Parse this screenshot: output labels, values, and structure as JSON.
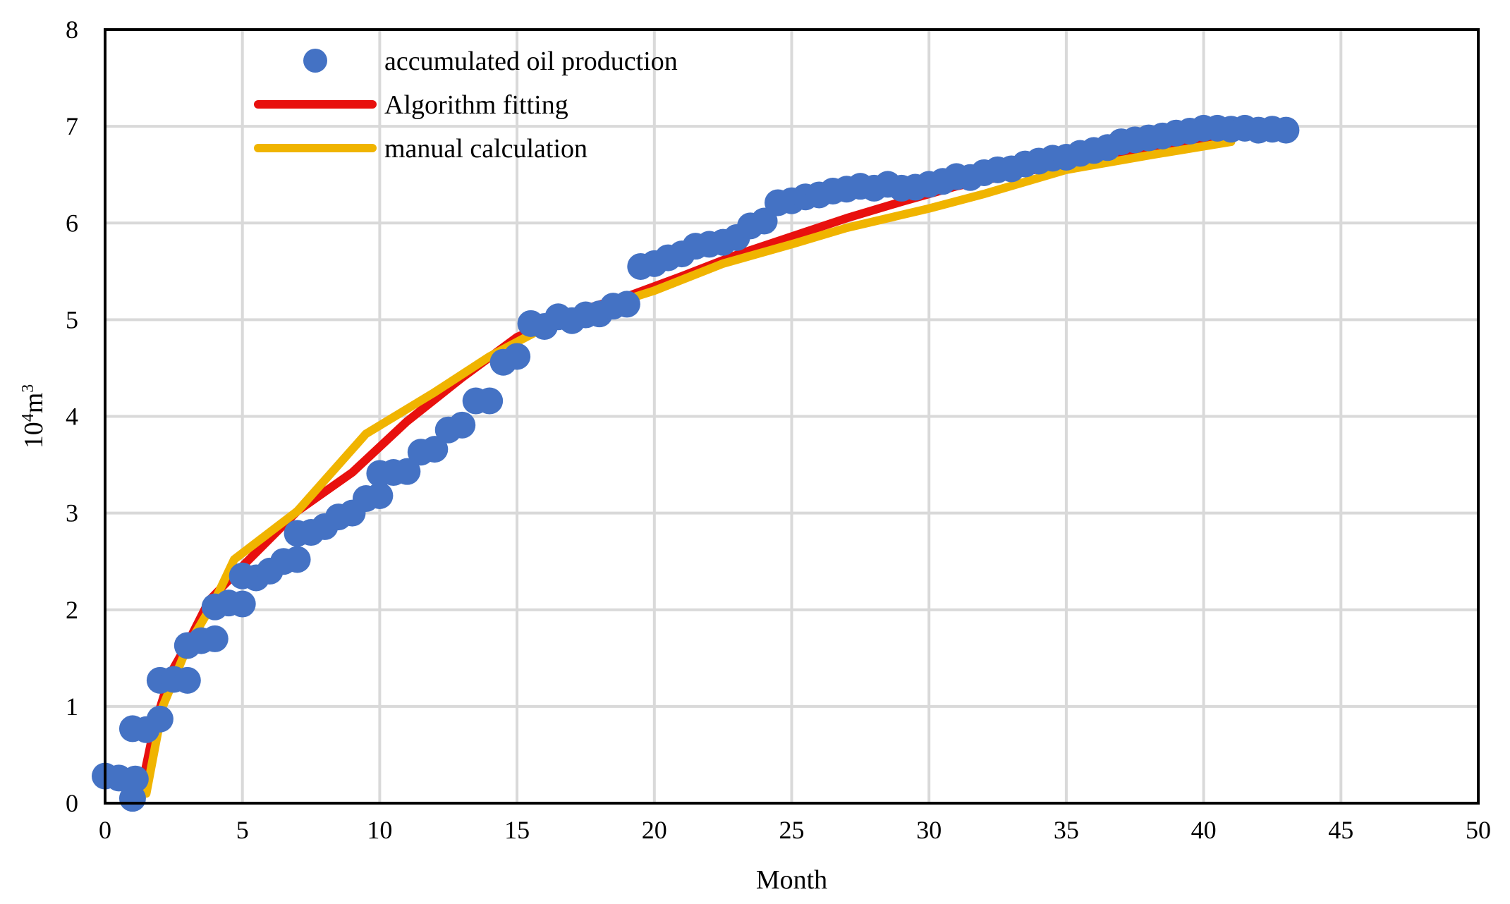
{
  "chart_data": {
    "type": "line",
    "title": "",
    "xlabel": "Month",
    "ylabel_base": "10",
    "ylabel_sup1": "4",
    "ylabel_mid": "m",
    "ylabel_sup2": "3",
    "xlim": [
      0,
      50
    ],
    "ylim": [
      0,
      8
    ],
    "xticks": [
      0,
      5,
      10,
      15,
      20,
      25,
      30,
      35,
      40,
      45,
      50
    ],
    "yticks": [
      0,
      1,
      2,
      3,
      4,
      5,
      6,
      7,
      8
    ],
    "grid": true,
    "legend_position": "top-left",
    "colors": {
      "scatter": "#4472C4",
      "fit": "#E8100E",
      "manual": "#F0B400",
      "grid": "#D9D9D9",
      "axis": "#000000"
    },
    "series": [
      {
        "name": "accumulated oil production",
        "kind": "scatter",
        "points": [
          [
            0,
            0.28
          ],
          [
            0.5,
            0.26
          ],
          [
            1,
            0.05
          ],
          [
            1.1,
            0.25
          ],
          [
            1,
            0.77
          ],
          [
            1.5,
            0.76
          ],
          [
            2,
            0.87
          ],
          [
            2,
            1.27
          ],
          [
            2.5,
            1.28
          ],
          [
            3,
            1.27
          ],
          [
            3,
            1.63
          ],
          [
            3.5,
            1.68
          ],
          [
            4,
            1.7
          ],
          [
            4,
            2.03
          ],
          [
            4.5,
            2.07
          ],
          [
            5,
            2.06
          ],
          [
            5,
            2.35
          ],
          [
            5.5,
            2.33
          ],
          [
            6,
            2.4
          ],
          [
            6.5,
            2.5
          ],
          [
            7,
            2.52
          ],
          [
            7,
            2.79
          ],
          [
            7.5,
            2.8
          ],
          [
            8,
            2.86
          ],
          [
            8.5,
            2.96
          ],
          [
            9,
            3.0
          ],
          [
            9.5,
            3.15
          ],
          [
            10,
            3.18
          ],
          [
            10,
            3.41
          ],
          [
            10.5,
            3.42
          ],
          [
            11,
            3.43
          ],
          [
            11.5,
            3.63
          ],
          [
            12,
            3.66
          ],
          [
            12.5,
            3.86
          ],
          [
            13,
            3.91
          ],
          [
            13.5,
            4.16
          ],
          [
            14,
            4.16
          ],
          [
            14.5,
            4.56
          ],
          [
            15,
            4.62
          ],
          [
            15.5,
            4.96
          ],
          [
            16,
            4.93
          ],
          [
            16.5,
            5.03
          ],
          [
            17,
            4.99
          ],
          [
            17.5,
            5.05
          ],
          [
            18,
            5.06
          ],
          [
            18.5,
            5.14
          ],
          [
            19,
            5.16
          ],
          [
            19.5,
            5.55
          ],
          [
            20,
            5.58
          ],
          [
            20.5,
            5.64
          ],
          [
            21,
            5.68
          ],
          [
            21.5,
            5.76
          ],
          [
            22,
            5.78
          ],
          [
            22.5,
            5.8
          ],
          [
            23,
            5.85
          ],
          [
            23.5,
            5.97
          ],
          [
            24,
            6.02
          ],
          [
            24.5,
            6.21
          ],
          [
            25,
            6.23
          ],
          [
            25.5,
            6.27
          ],
          [
            26,
            6.29
          ],
          [
            26.5,
            6.33
          ],
          [
            27,
            6.35
          ],
          [
            27.5,
            6.38
          ],
          [
            28,
            6.36
          ],
          [
            28.5,
            6.4
          ],
          [
            29,
            6.36
          ],
          [
            29.5,
            6.37
          ],
          [
            30,
            6.4
          ],
          [
            30.5,
            6.43
          ],
          [
            31,
            6.48
          ],
          [
            31.5,
            6.47
          ],
          [
            32,
            6.52
          ],
          [
            32.5,
            6.55
          ],
          [
            33,
            6.56
          ],
          [
            33.5,
            6.61
          ],
          [
            34,
            6.64
          ],
          [
            34.5,
            6.67
          ],
          [
            35,
            6.68
          ],
          [
            35.5,
            6.72
          ],
          [
            36,
            6.75
          ],
          [
            36.5,
            6.78
          ],
          [
            37,
            6.84
          ],
          [
            37.5,
            6.86
          ],
          [
            38,
            6.88
          ],
          [
            38.5,
            6.9
          ],
          [
            39,
            6.93
          ],
          [
            39.5,
            6.95
          ],
          [
            40,
            6.98
          ],
          [
            40.5,
            6.98
          ],
          [
            41,
            6.97
          ],
          [
            41.5,
            6.98
          ],
          [
            42,
            6.96
          ],
          [
            42.5,
            6.97
          ],
          [
            43,
            6.96
          ]
        ]
      },
      {
        "name": "Algorithm fitting",
        "kind": "line",
        "points": [
          [
            1.3,
            0.12
          ],
          [
            1.8,
            0.8
          ],
          [
            2.4,
            1.35
          ],
          [
            3,
            1.65
          ],
          [
            3.8,
            2.1
          ],
          [
            5,
            2.45
          ],
          [
            7,
            3.02
          ],
          [
            9,
            3.42
          ],
          [
            11,
            3.95
          ],
          [
            13,
            4.4
          ],
          [
            15,
            4.82
          ],
          [
            17,
            5.07
          ],
          [
            19,
            5.24
          ],
          [
            21,
            5.45
          ],
          [
            23,
            5.67
          ],
          [
            25,
            5.86
          ],
          [
            27,
            6.05
          ],
          [
            29,
            6.22
          ],
          [
            31,
            6.38
          ],
          [
            33,
            6.5
          ],
          [
            35,
            6.62
          ],
          [
            37,
            6.73
          ],
          [
            39,
            6.82
          ],
          [
            41,
            6.92
          ],
          [
            43,
            6.98
          ]
        ]
      },
      {
        "name": "manual calculation",
        "kind": "line",
        "points": [
          [
            1.5,
            0.1
          ],
          [
            2.1,
            1.0
          ],
          [
            3,
            1.62
          ],
          [
            4,
            2.1
          ],
          [
            4.7,
            2.52
          ],
          [
            7,
            3.02
          ],
          [
            9.5,
            3.82
          ],
          [
            12,
            4.25
          ],
          [
            14,
            4.62
          ],
          [
            16,
            4.92
          ],
          [
            18,
            5.12
          ],
          [
            20,
            5.3
          ],
          [
            22.5,
            5.58
          ],
          [
            25,
            5.78
          ],
          [
            27,
            5.95
          ],
          [
            30,
            6.15
          ],
          [
            32,
            6.3
          ],
          [
            35,
            6.55
          ],
          [
            38,
            6.7
          ],
          [
            41,
            6.84
          ]
        ]
      }
    ]
  }
}
